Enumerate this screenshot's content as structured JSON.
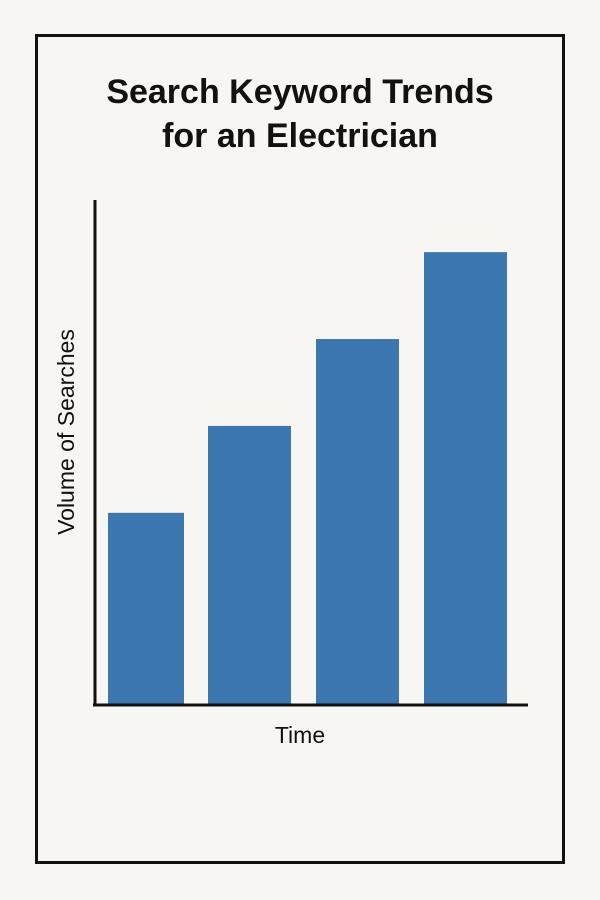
{
  "chart_data": {
    "type": "bar",
    "title": "Search Keyword Trends for an Electrician",
    "title_lines": [
      "Search Keyword Trends",
      "for an Electrician"
    ],
    "xlabel": "Time",
    "ylabel": "Volume of Searches",
    "categories": [
      "",
      "",
      "",
      ""
    ],
    "values": [
      22,
      32,
      42,
      52
    ],
    "ylim": [
      0,
      58
    ],
    "grid": false,
    "bar_color": "#3b78b0",
    "axis_color": "#111111"
  }
}
